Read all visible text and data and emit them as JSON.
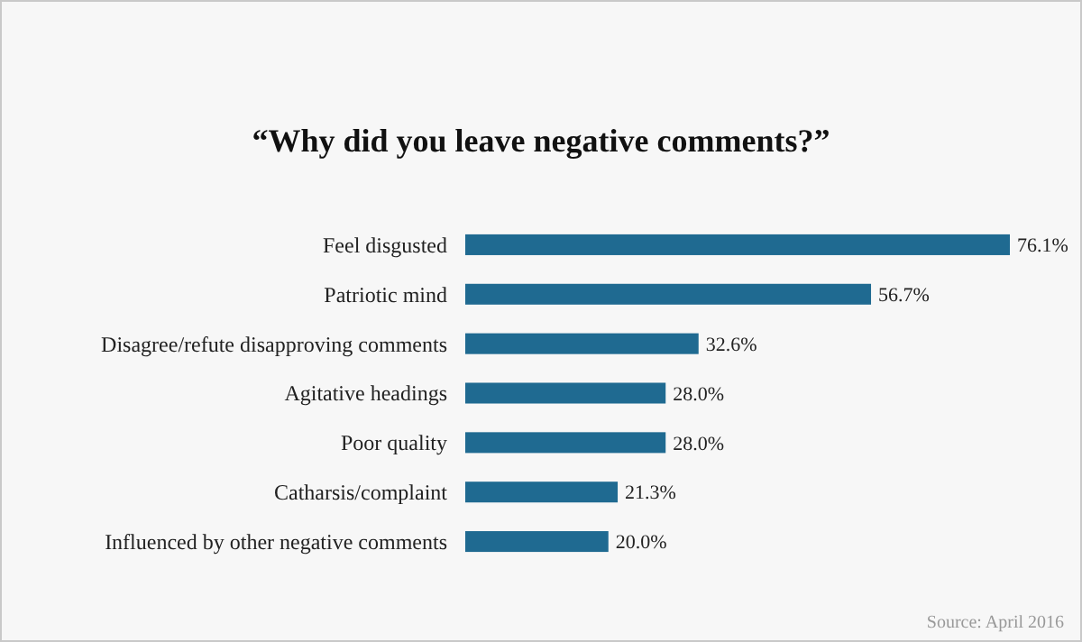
{
  "chart_data": {
    "type": "bar",
    "orientation": "horizontal",
    "title": "“Why did you leave negative comments?”",
    "categories": [
      "Feel disgusted",
      "Patriotic mind",
      "Disagree/refute disapproving comments",
      "Agitative headings",
      "Poor quality",
      "Catharsis/complaint",
      "Influenced by other negative comments"
    ],
    "values": [
      76.1,
      56.7,
      32.6,
      28.0,
      28.0,
      21.3,
      20.0
    ],
    "value_labels": [
      "76.1%",
      "56.7%",
      "32.6%",
      "28.0%",
      "28.0%",
      "21.3%",
      "20.0%"
    ],
    "color": "#1f6a91",
    "annotations": [
      "Source: April 2016"
    ]
  }
}
